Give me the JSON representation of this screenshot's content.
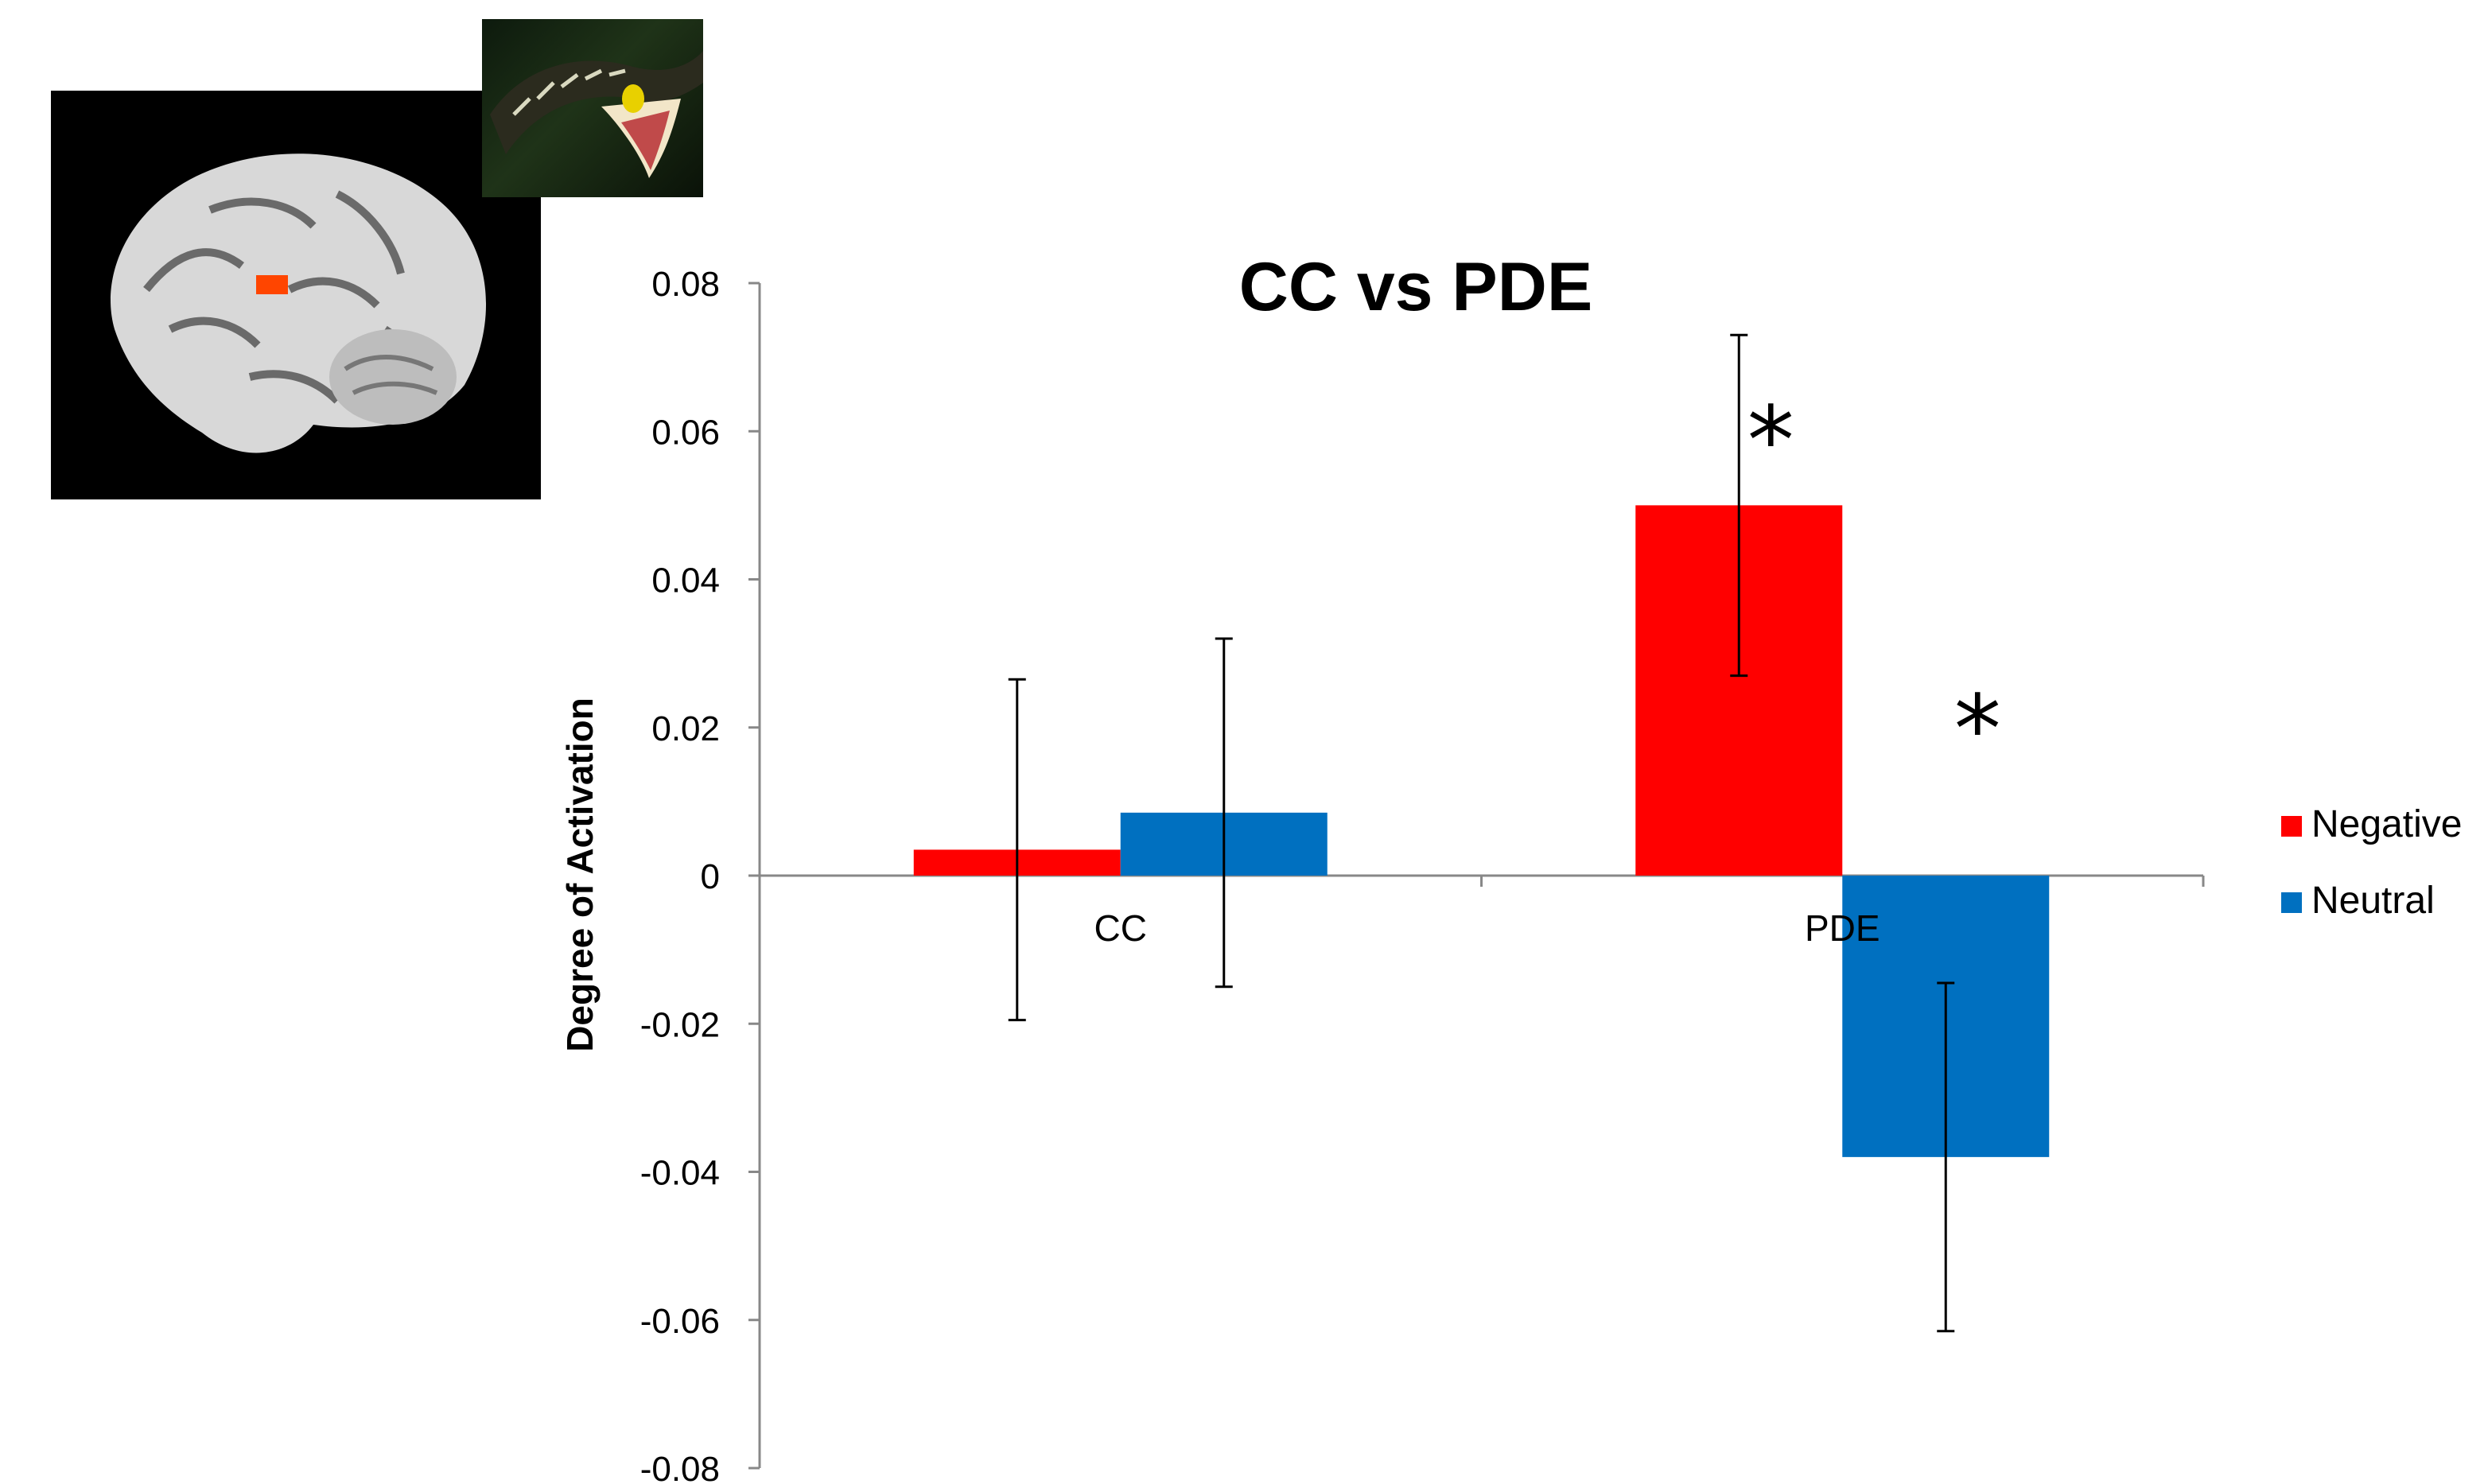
{
  "chart_data": {
    "type": "bar",
    "title": "CC vs PDE",
    "ylabel": "Degree of Activation",
    "xlabel": "",
    "categories": [
      "CC",
      "PDE"
    ],
    "ylim": [
      -0.08,
      0.08
    ],
    "yticks": [
      0.08,
      0.06,
      0.04,
      0.02,
      0,
      -0.02,
      -0.04,
      -0.06,
      -0.08
    ],
    "ytick_labels": [
      "0.08",
      "0.06",
      "0.04",
      "0.02",
      "0",
      "-0.02",
      "-0.04",
      "-0.06",
      "-0.08"
    ],
    "series": [
      {
        "name": "Negative",
        "color": "#ff0000",
        "values": [
          0.0035,
          0.05
        ],
        "error": [
          0.023,
          0.023
        ]
      },
      {
        "name": "Neutral",
        "color": "#0070c0",
        "values": [
          0.0085,
          -0.038
        ],
        "error": [
          0.0235,
          0.0235
        ]
      }
    ],
    "legend_position": "right",
    "grid": false,
    "annotations": [
      {
        "text": "*",
        "category": "PDE",
        "series": "Negative",
        "y": 0.06
      },
      {
        "text": "*",
        "category": "PDE",
        "series": "Neutral",
        "y": 0.021
      }
    ]
  },
  "images": {
    "brain": "sagittal-brain-scan",
    "snake": "snake-photo"
  }
}
